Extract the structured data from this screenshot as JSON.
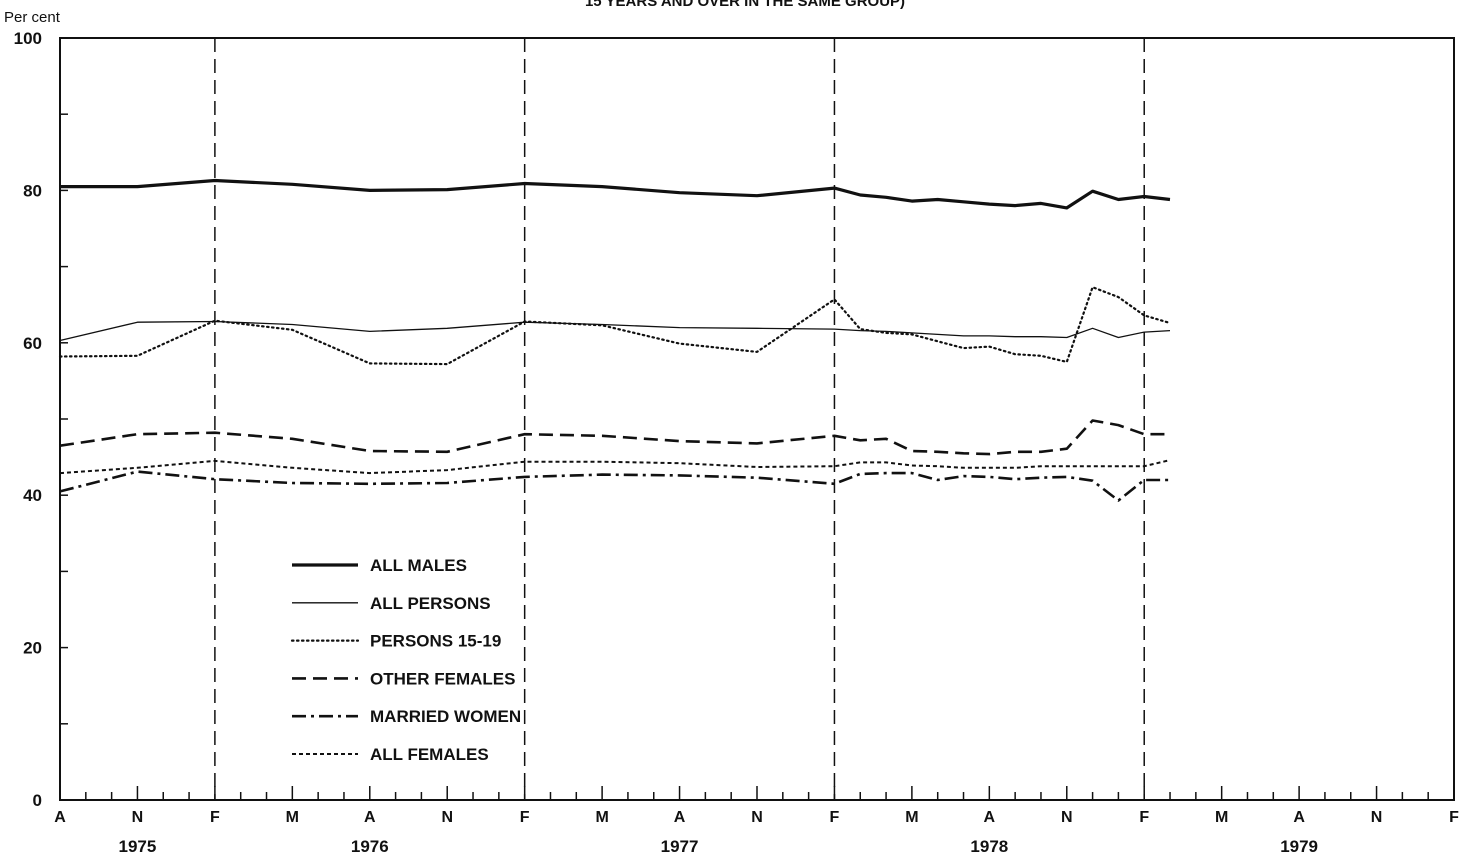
{
  "chart_data": {
    "type": "line",
    "title_fragment": "15 YEARS AND OVER IN THE SAME GROUP)",
    "ylabel": "Per cent",
    "xlabel": "",
    "ylim": [
      0,
      100
    ],
    "y_ticks": [
      0,
      20,
      40,
      60,
      80,
      100
    ],
    "month_ticks": [
      {
        "label": "A",
        "t": 0
      },
      {
        "label": "N",
        "t": 3
      },
      {
        "label": "F",
        "t": 6
      },
      {
        "label": "M",
        "t": 9
      },
      {
        "label": "A",
        "t": 12
      },
      {
        "label": "N",
        "t": 15
      },
      {
        "label": "F",
        "t": 18
      },
      {
        "label": "M",
        "t": 21
      },
      {
        "label": "A",
        "t": 24
      },
      {
        "label": "N",
        "t": 27
      },
      {
        "label": "F",
        "t": 30
      },
      {
        "label": "M",
        "t": 33
      },
      {
        "label": "A",
        "t": 36
      },
      {
        "label": "N",
        "t": 39
      },
      {
        "label": "F",
        "t": 42
      },
      {
        "label": "M",
        "t": 45
      },
      {
        "label": "A",
        "t": 48
      },
      {
        "label": "N",
        "t": 51
      },
      {
        "label": "F",
        "t": 54
      }
    ],
    "year_labels": [
      {
        "label": "1975",
        "t": 3
      },
      {
        "label": "1976",
        "t": 12
      },
      {
        "label": "1977",
        "t": 24
      },
      {
        "label": "1978",
        "t": 36
      },
      {
        "label": "1979",
        "t": 48
      }
    ],
    "legend_position": "lower-left",
    "series": [
      {
        "name": "ALL MALES",
        "style": "thick-solid",
        "x": [
          0,
          3,
          6,
          9,
          12,
          15,
          18,
          21,
          24,
          27,
          30,
          31,
          32,
          33,
          34,
          35,
          36,
          37,
          38,
          39,
          40,
          41,
          42,
          43
        ],
        "values": [
          80.5,
          80.5,
          81.3,
          80.8,
          80.0,
          80.1,
          80.9,
          80.5,
          79.7,
          79.3,
          80.3,
          79.4,
          79.1,
          78.6,
          78.8,
          78.5,
          78.2,
          78.0,
          78.3,
          77.7,
          79.9,
          78.8,
          79.2,
          78.8
        ]
      },
      {
        "name": "ALL PERSONS",
        "style": "thin-solid",
        "x": [
          0,
          3,
          6,
          9,
          12,
          15,
          18,
          21,
          24,
          27,
          30,
          31,
          32,
          33,
          34,
          35,
          36,
          37,
          38,
          39,
          40,
          41,
          42,
          43
        ],
        "values": [
          60.3,
          62.7,
          62.8,
          62.4,
          61.5,
          61.9,
          62.7,
          62.4,
          62.0,
          61.9,
          61.8,
          61.6,
          61.5,
          61.3,
          61.1,
          60.9,
          60.9,
          60.8,
          60.8,
          60.7,
          61.9,
          60.7,
          61.4,
          61.6
        ]
      },
      {
        "name": "PERSONS 15-19",
        "style": "dotted",
        "x": [
          0,
          3,
          6,
          9,
          12,
          15,
          18,
          21,
          24,
          27,
          30,
          31,
          32,
          33,
          34,
          35,
          36,
          37,
          38,
          39,
          40,
          41,
          42,
          43
        ],
        "values": [
          58.2,
          58.3,
          62.9,
          61.7,
          57.3,
          57.2,
          62.8,
          62.3,
          59.9,
          58.8,
          65.7,
          61.8,
          61.3,
          61.1,
          60.2,
          59.3,
          59.5,
          58.5,
          58.3,
          57.5,
          67.3,
          66.0,
          63.6,
          62.6
        ]
      },
      {
        "name": "OTHER FEMALES",
        "style": "long-dash",
        "x": [
          0,
          3,
          6,
          9,
          12,
          15,
          18,
          21,
          24,
          27,
          30,
          31,
          32,
          33,
          34,
          35,
          36,
          37,
          38,
          39,
          40,
          41,
          42,
          43
        ],
        "values": [
          46.5,
          48.0,
          48.2,
          47.4,
          45.8,
          45.7,
          48.0,
          47.8,
          47.1,
          46.8,
          47.8,
          47.2,
          47.4,
          45.8,
          45.7,
          45.5,
          45.4,
          45.7,
          45.7,
          46.1,
          49.8,
          49.2,
          48.0,
          48.0
        ]
      },
      {
        "name": "MARRIED WOMEN",
        "style": "dash-dot",
        "x": [
          0,
          3,
          6,
          9,
          12,
          15,
          18,
          21,
          24,
          27,
          30,
          31,
          32,
          33,
          34,
          35,
          36,
          37,
          38,
          39,
          40,
          41,
          42,
          43
        ],
        "values": [
          40.5,
          43.1,
          42.1,
          41.6,
          41.5,
          41.6,
          42.4,
          42.7,
          42.6,
          42.3,
          41.5,
          42.8,
          42.9,
          42.9,
          42.0,
          42.5,
          42.4,
          42.1,
          42.3,
          42.4,
          41.9,
          39.3,
          42.0,
          42.0
        ]
      },
      {
        "name": "ALL FEMALES",
        "style": "short-dash",
        "x": [
          0,
          3,
          6,
          9,
          12,
          15,
          18,
          21,
          24,
          27,
          30,
          31,
          32,
          33,
          34,
          35,
          36,
          37,
          38,
          39,
          40,
          41,
          42,
          43
        ],
        "values": [
          42.9,
          43.6,
          44.5,
          43.6,
          42.9,
          43.3,
          44.4,
          44.4,
          44.2,
          43.7,
          43.8,
          44.3,
          44.3,
          43.9,
          43.8,
          43.6,
          43.6,
          43.6,
          43.8,
          43.8,
          43.8,
          43.8,
          43.8,
          44.6
        ]
      }
    ]
  }
}
